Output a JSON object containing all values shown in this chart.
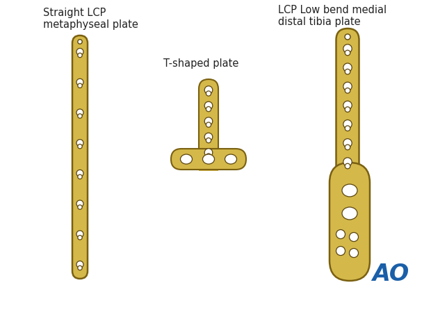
{
  "bg_color": "#ffffff",
  "plate_fill": "#d4b84a",
  "plate_edge": "#7a6010",
  "hole_fill": "#ffffff",
  "hole_edge": "#5a4510",
  "title1": "Straight LCP\nmetaphyseal plate",
  "title2": "T-shaped plate",
  "title3": "LCP Low bend medial\ndistal tibia plate",
  "ao_text": "AO",
  "ao_color": "#1a5fa8",
  "title_fontsize": 10.5,
  "ao_fontsize": 24
}
